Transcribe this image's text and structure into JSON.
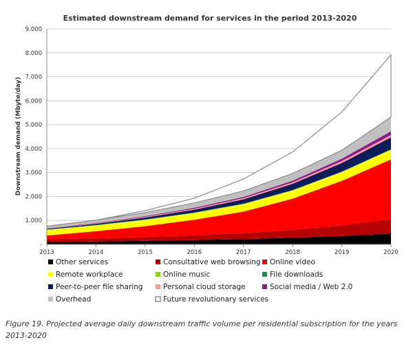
{
  "chart_data": {
    "type": "area",
    "title": "Estimated downstream demand for services in the period 2013-2020",
    "xlabel": "",
    "ylabel": "Downstream demand (Mbyte/day)",
    "ylim": [
      0,
      9000
    ],
    "yticks": [
      0,
      1000,
      2000,
      3000,
      4000,
      5000,
      6000,
      7000,
      8000,
      9000
    ],
    "ytick_labels": [
      "-",
      "1.000",
      "2.000",
      "3.000",
      "4.000",
      "5.000",
      "6.000",
      "7.000",
      "8.000",
      "9.000"
    ],
    "x": [
      "2013",
      "2014",
      "2015",
      "2016",
      "2017",
      "2018",
      "2019",
      "2020"
    ],
    "stacked": true,
    "grid": "horizontal",
    "legend_position": "bottom",
    "series": [
      {
        "name": "Other services",
        "color": "#000000",
        "values": [
          100,
          120,
          150,
          180,
          220,
          280,
          350,
          450
        ]
      },
      {
        "name": "Consultative web browsing",
        "color": "#b40000",
        "values": [
          120,
          130,
          160,
          200,
          250,
          330,
          450,
          600
        ]
      },
      {
        "name": "Online video",
        "color": "#ff0000",
        "values": [
          150,
          300,
          450,
          650,
          900,
          1300,
          1850,
          2500
        ]
      },
      {
        "name": "Remote workplace",
        "color": "#ffff00",
        "values": [
          230,
          240,
          260,
          280,
          310,
          340,
          370,
          400
        ]
      },
      {
        "name": "Online music",
        "color": "#8fd400",
        "values": [
          10,
          10,
          10,
          10,
          10,
          10,
          10,
          10
        ]
      },
      {
        "name": "File downloads",
        "color": "#009e3d",
        "values": [
          10,
          10,
          10,
          10,
          10,
          10,
          10,
          10
        ]
      },
      {
        "name": "Peer-to-peer file sharing",
        "color": "#0b1e5b",
        "values": [
          30,
          50,
          80,
          120,
          180,
          260,
          360,
          500
        ]
      },
      {
        "name": "Personal cloud storage",
        "color": "#ff9999",
        "values": [
          10,
          20,
          30,
          40,
          50,
          60,
          80,
          100
        ]
      },
      {
        "name": "Social media / Web 2.0",
        "color": "#8b1c8b",
        "values": [
          10,
          20,
          30,
          40,
          50,
          70,
          100,
          150
        ]
      },
      {
        "name": "Overhead",
        "color": "#c0c0c0",
        "values": [
          90,
          110,
          150,
          200,
          250,
          300,
          350,
          600
        ]
      },
      {
        "name": "Future revolutionary services",
        "color": "#ffffff",
        "values": [
          0,
          0,
          80,
          200,
          500,
          900,
          1600,
          2600
        ]
      }
    ]
  },
  "caption": "Figure 19. Projected average daily downstream traffic volume per residential subscription for the years 2013-2020"
}
